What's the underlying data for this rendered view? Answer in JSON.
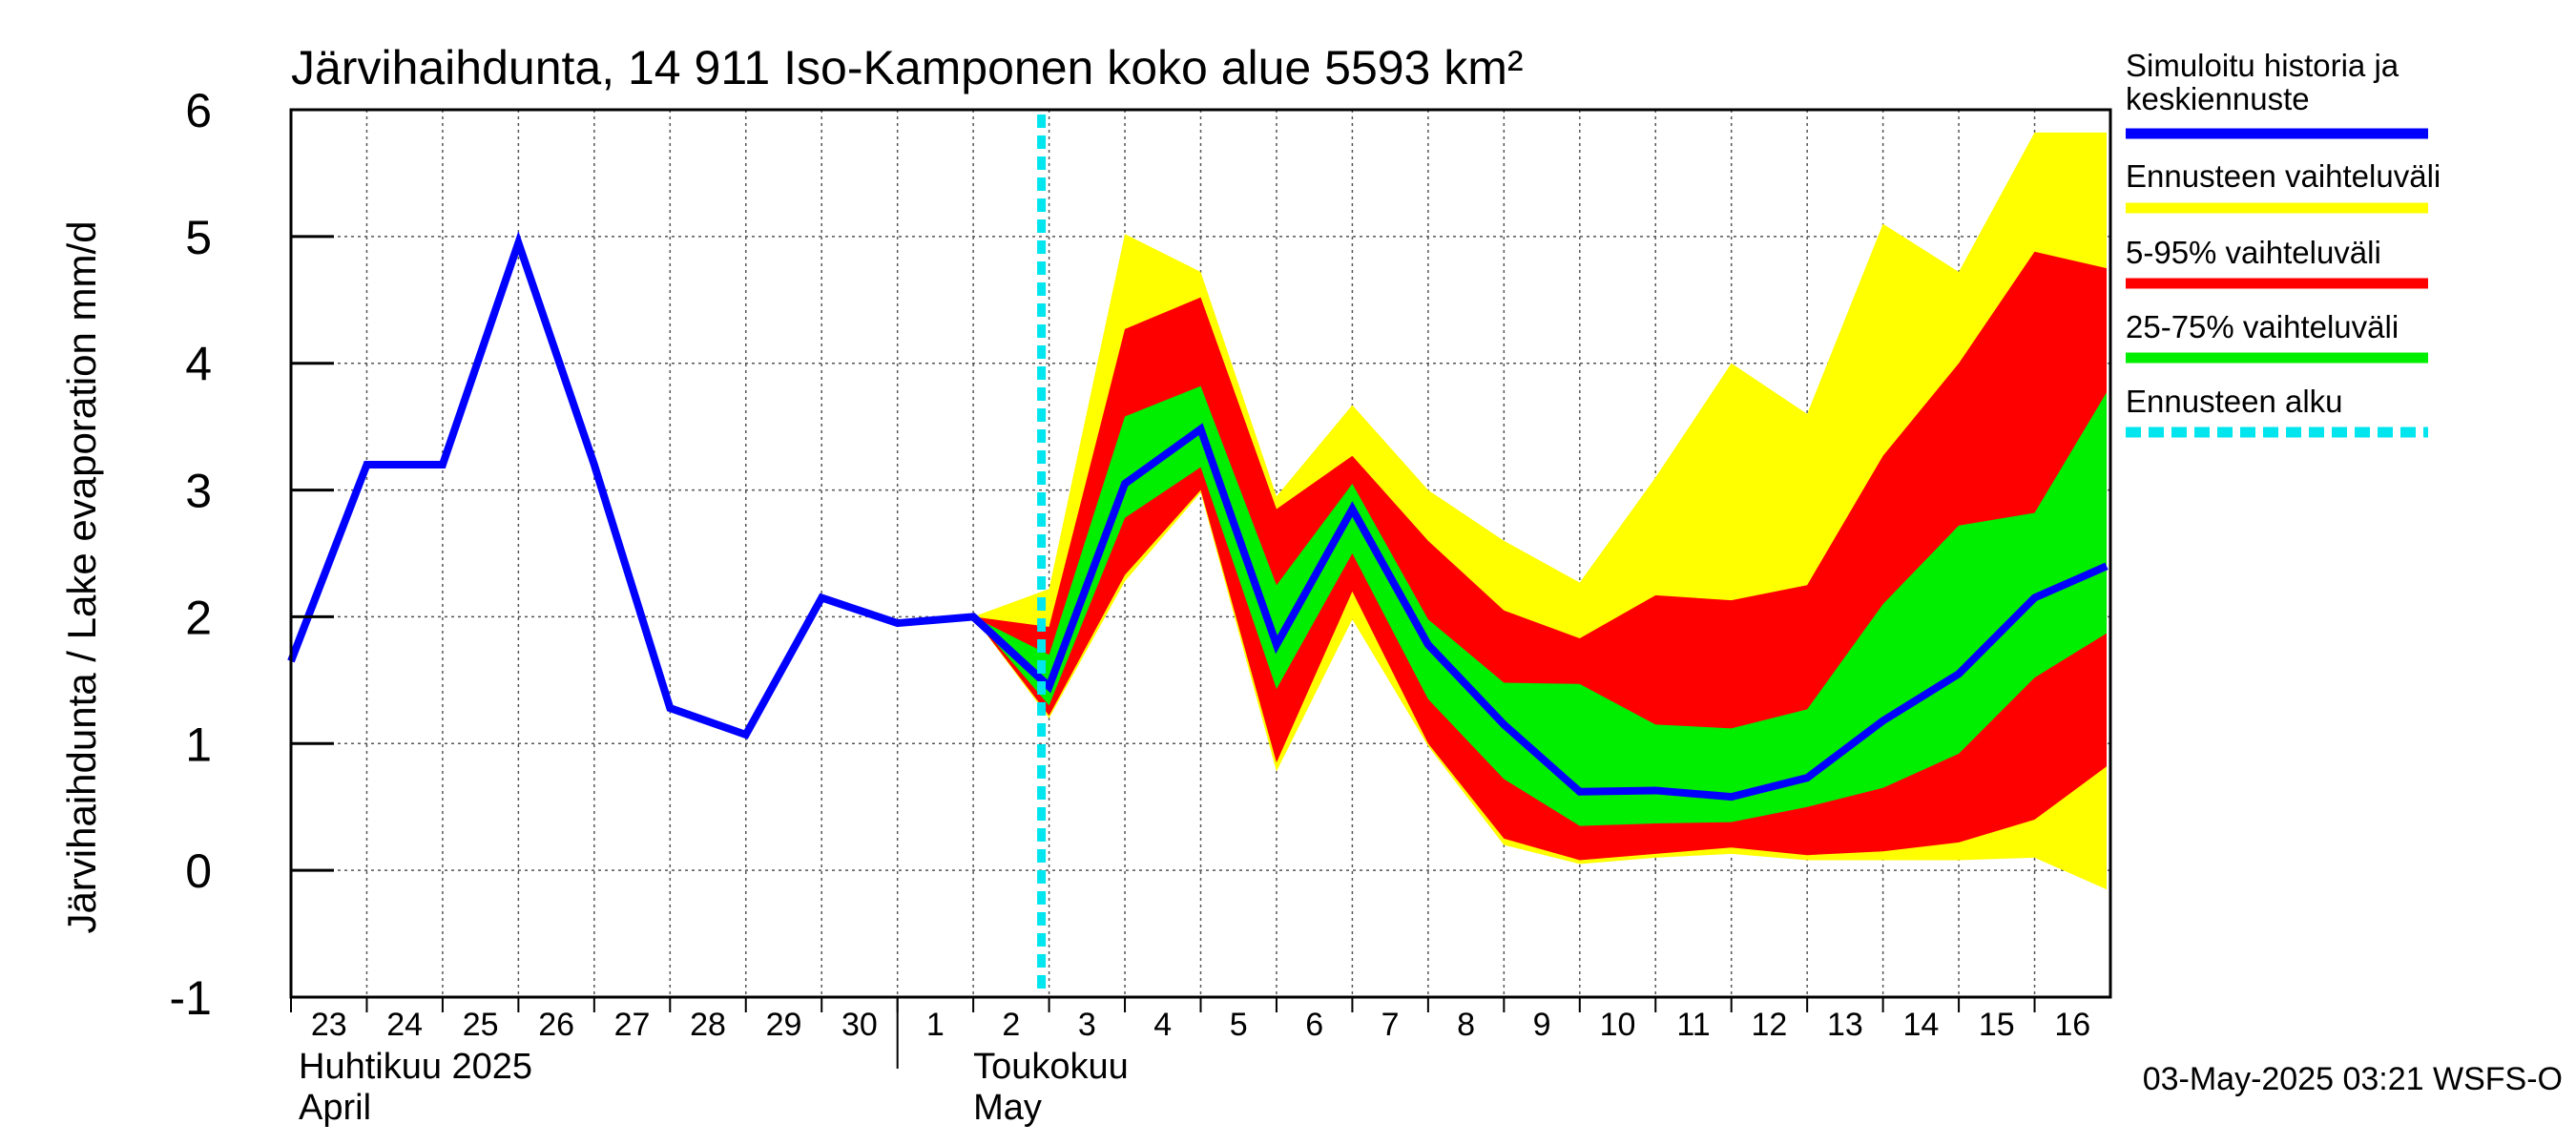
{
  "chart_data": {
    "type": "area",
    "title": "Järvihaihdunta, 14 911 Iso-Kamponen koko alue 5593 km²",
    "ylabel": "Järvihaihdunta / Lake evaporation   mm/d",
    "ylim": [
      -1,
      6
    ],
    "yticks": [
      "6",
      "5",
      "4",
      "3",
      "2",
      "1",
      "0",
      "-1"
    ],
    "grid": true,
    "legend_position": "right",
    "x_day_labels": [
      "23",
      "24",
      "25",
      "26",
      "27",
      "28",
      "29",
      "30",
      "1",
      "2",
      "3",
      "4",
      "5",
      "6",
      "7",
      "8",
      "9",
      "10",
      "11",
      "12",
      "13",
      "14",
      "15",
      "16"
    ],
    "month_labels": [
      {
        "fi": "Huhtikuu  2025",
        "en": "April",
        "start_day": "23"
      },
      {
        "fi": "Toukokuu",
        "en": "May",
        "start_day": "2"
      }
    ],
    "forecast_start_day": "3",
    "history": {
      "name": "Simuloitu historia ja keskiennuste",
      "color": "#0000ff",
      "x": [
        0,
        1,
        2,
        3,
        4,
        5,
        6,
        7,
        8,
        9,
        10
      ],
      "y": [
        1.65,
        3.2,
        3.2,
        4.95,
        3.2,
        1.28,
        1.07,
        2.15,
        1.95,
        2.0,
        1.45
      ]
    },
    "forecast_days": [
      9,
      10,
      11,
      12,
      13,
      14,
      15,
      16,
      17,
      18,
      19,
      20,
      21,
      22,
      23,
      23.95
    ],
    "median": [
      2.0,
      1.45,
      3.05,
      3.48,
      1.78,
      2.85,
      1.78,
      1.15,
      0.62,
      0.63,
      0.58,
      0.73,
      1.18,
      1.55,
      2.15,
      2.4
    ],
    "bands": [
      {
        "name": "Ennusteen vaihteluväli",
        "color": "#ffff00",
        "upper": [
          2.0,
          2.22,
          5.02,
          4.72,
          2.95,
          3.67,
          3.0,
          2.6,
          2.27,
          3.1,
          4.0,
          3.6,
          5.1,
          4.72,
          5.82,
          5.82
        ],
        "lower": [
          2.0,
          1.2,
          2.28,
          2.98,
          0.78,
          1.98,
          0.98,
          0.2,
          0.05,
          0.1,
          0.13,
          0.08,
          0.08,
          0.08,
          0.1,
          -0.15
        ]
      },
      {
        "name": "5-95% vaihteluväli",
        "color": "#ff0000",
        "upper": [
          2.0,
          1.92,
          4.27,
          4.52,
          2.85,
          3.27,
          2.6,
          2.05,
          1.83,
          2.17,
          2.13,
          2.25,
          3.27,
          4.0,
          4.88,
          4.75
        ],
        "lower": [
          2.0,
          1.22,
          2.33,
          3.0,
          0.85,
          2.2,
          1.0,
          0.25,
          0.08,
          0.13,
          0.18,
          0.12,
          0.15,
          0.22,
          0.4,
          0.82
        ]
      },
      {
        "name": "25-75% vaihteluväli",
        "color": "#00ee00",
        "upper": [
          2.0,
          1.7,
          3.58,
          3.82,
          2.25,
          3.05,
          1.98,
          1.48,
          1.47,
          1.15,
          1.12,
          1.27,
          2.1,
          2.72,
          2.82,
          3.77
        ],
        "lower": [
          2.0,
          1.3,
          2.78,
          3.18,
          1.43,
          2.5,
          1.35,
          0.72,
          0.35,
          0.37,
          0.38,
          0.5,
          0.65,
          0.92,
          1.52,
          1.87
        ]
      }
    ],
    "legend": [
      {
        "label": "Simuloitu historia ja keskiennuste",
        "color": "#0000ff",
        "style": "solid"
      },
      {
        "label": "Ennusteen vaihteluväli",
        "color": "#ffff00",
        "style": "solid"
      },
      {
        "label": "5-95% vaihteluväli",
        "color": "#ff0000",
        "style": "solid"
      },
      {
        "label": "25-75% vaihteluväli",
        "color": "#00ee00",
        "style": "solid"
      },
      {
        "label": "Ennusteen alku",
        "color": "#00e5ee",
        "style": "dashed"
      }
    ],
    "footer": "03-May-2025 03:21 WSFS-O"
  }
}
